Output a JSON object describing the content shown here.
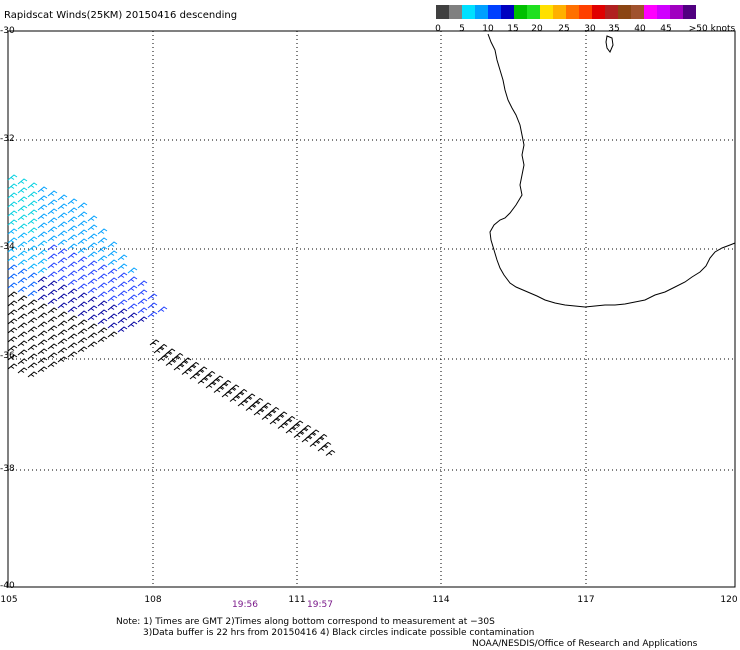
{
  "title": "Rapidscat Winds(25KM) 20150416 descending",
  "legend": {
    "colors": [
      "#404040",
      "#808080",
      "#00e0ff",
      "#00a0ff",
      "#0040ff",
      "#0000c0",
      "#00c000",
      "#20e020",
      "#ffe000",
      "#ffb000",
      "#ff7000",
      "#ff4000",
      "#e00000",
      "#b02020",
      "#8b4513",
      "#a0522d",
      "#ff00ff",
      "#d000ff",
      "#a000c0",
      "#500080"
    ],
    "labels": [
      "0",
      "5",
      "10",
      "15",
      "20",
      "25",
      "30",
      "35",
      "40",
      "45",
      ">50 knots"
    ]
  },
  "y_axis": {
    "labels": [
      "-30",
      "-32",
      "-34",
      "-36",
      "-38",
      "-40"
    ]
  },
  "x_axis": {
    "labels": [
      "105",
      "108",
      "111",
      "114",
      "117",
      "120"
    ]
  },
  "time_marks": [
    "19:56",
    "19:57"
  ],
  "notes": {
    "line1": "Note: 1) Times are GMT 2)Times along bottom correspond to measurement at −30S",
    "line2": "3)Data buffer is 22 hrs from 20150416 4) Black circles indicate possible contamination",
    "credit": "NOAA/NESDIS/Office of Research and Applications"
  },
  "map": {
    "lon_range": [
      105,
      120
    ],
    "lat_range": [
      -30,
      -40
    ],
    "grid": "dotted",
    "coastline": "Southwest Australia"
  }
}
